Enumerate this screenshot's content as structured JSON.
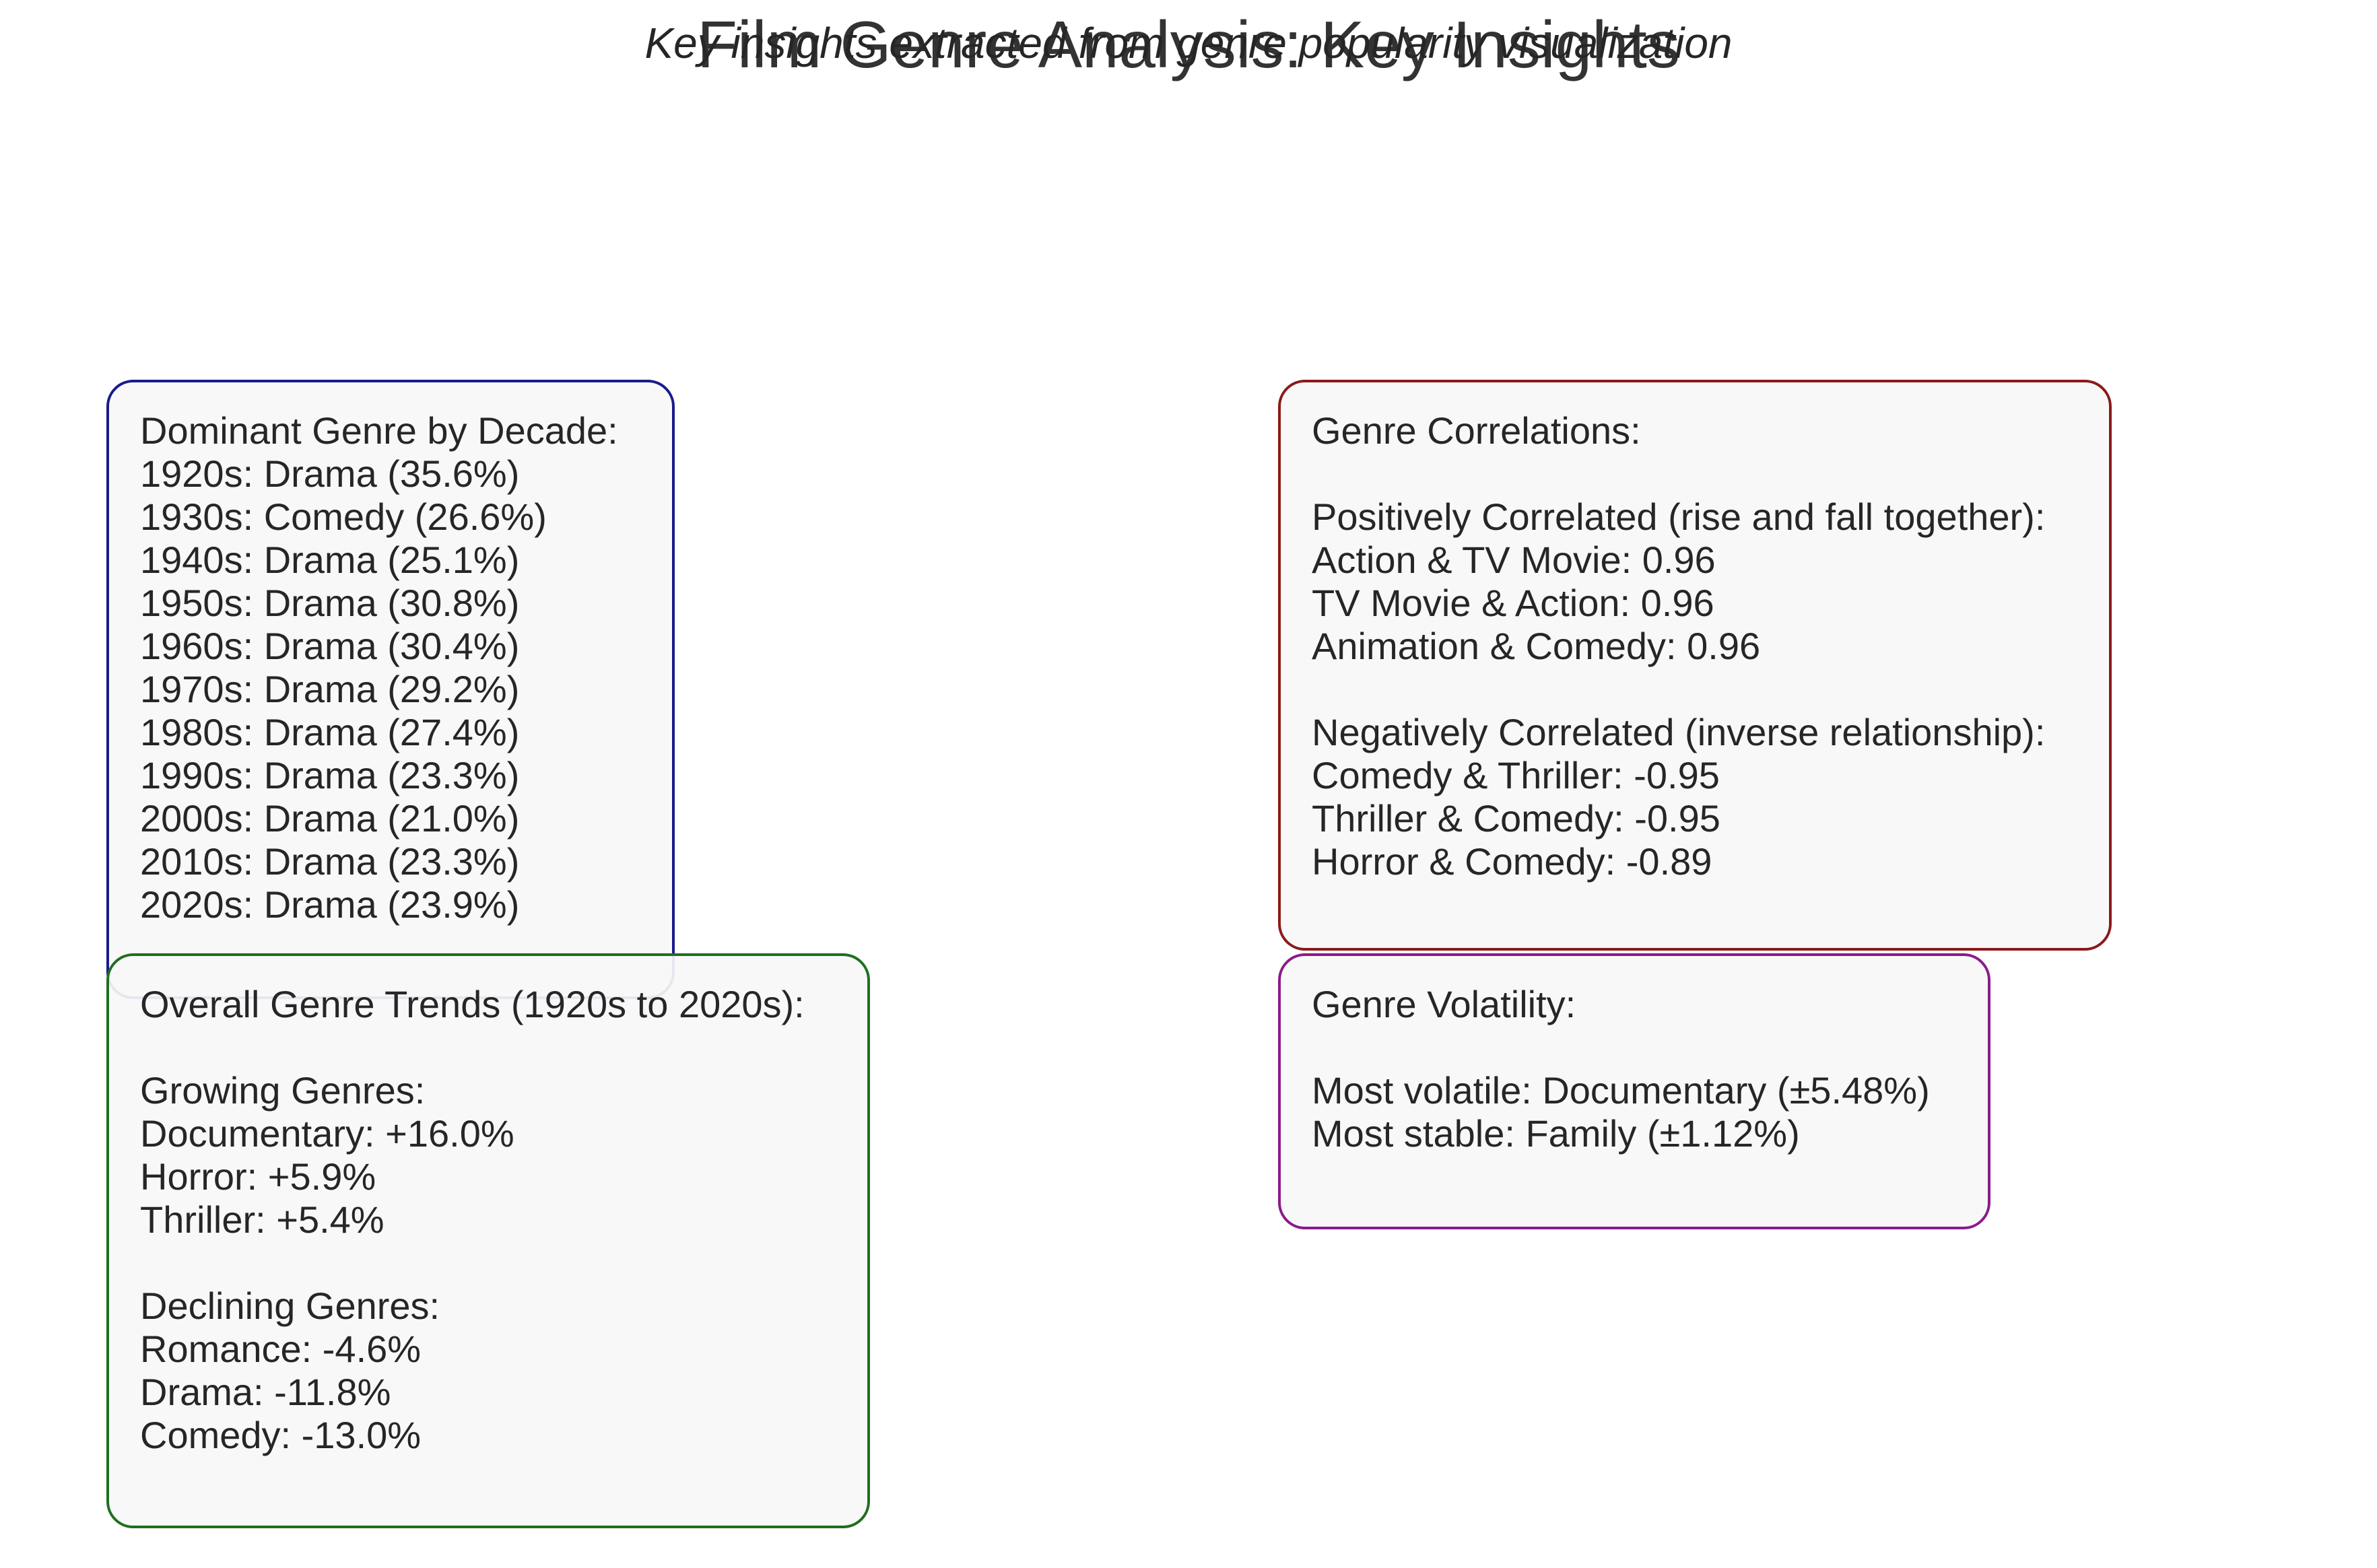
{
  "chart_data": {
    "type": "table",
    "title": "Film Genre Analysis: Key Insights",
    "subtitle": "Key insights extracted from genre popularity visualization",
    "panels": [
      {
        "id": "decade",
        "accent": "#1a1a8c",
        "lines": [
          "Dominant Genre by Decade:",
          "1920s: Drama (35.6%)",
          "1930s: Comedy (26.6%)",
          "1940s: Drama (25.1%)",
          "1950s: Drama (30.8%)",
          "1960s: Drama (30.4%)",
          "1970s: Drama (29.2%)",
          "1980s: Drama (27.4%)",
          "1990s: Drama (23.3%)",
          "2000s: Drama (21.0%)",
          "2010s: Drama (23.3%)",
          "2020s: Drama (23.9%)"
        ]
      },
      {
        "id": "corr",
        "accent": "#8b1a1a",
        "lines": [
          "Genre Correlations:",
          "",
          "Positively Correlated (rise and fall together):",
          "Action & TV Movie: 0.96",
          "TV Movie & Action: 0.96",
          "Animation & Comedy: 0.96",
          "",
          "Negatively Correlated (inverse relationship):",
          "Comedy & Thriller: -0.95",
          "Thriller & Comedy: -0.95",
          "Horror & Comedy: -0.89"
        ]
      },
      {
        "id": "trends",
        "accent": "#1f6f1f",
        "lines": [
          "Overall Genre Trends (1920s to 2020s):",
          "",
          "Growing Genres:",
          "Documentary: +16.0%",
          "Horror: +5.9%",
          "Thriller: +5.4%",
          "",
          "Declining Genres:",
          "Romance: -4.6%",
          "Drama: -11.8%",
          "Comedy: -13.0%"
        ]
      },
      {
        "id": "vol",
        "accent": "#8b1a8b",
        "lines": [
          "Genre Volatility:",
          "",
          "Most volatile: Documentary (±5.48%)",
          "Most stable: Family (±1.12%)"
        ]
      }
    ]
  }
}
